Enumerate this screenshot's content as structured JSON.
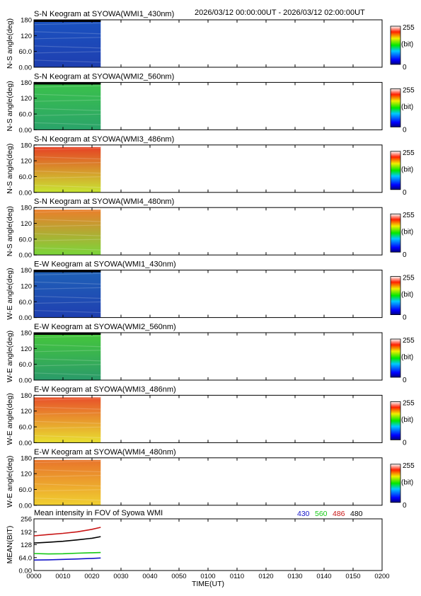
{
  "header": {
    "range": "2026/03/12 00:00:00UT - 2026/03/12 02:00:00UT"
  },
  "chart_data": [
    {
      "type": "heatmap",
      "title": "S-N Keogram at SYOWA(WMI1_430nm)",
      "ylabel": "N-S angle(deg)",
      "yticks": [
        "0.00",
        "60.0",
        "120",
        "180"
      ],
      "ylim": [
        0,
        180
      ],
      "colorbar": {
        "min": "0",
        "max": "255",
        "unit": "(bit)"
      },
      "data_extent_time": "00:00-00:23",
      "palette": "blue",
      "bg": [
        "#1f3fb0",
        "#1a52c0"
      ]
    },
    {
      "type": "heatmap",
      "title": "S-N Keogram at SYOWA(WMI2_560nm)",
      "ylabel": "N-S angle(deg)",
      "yticks": [
        "0.00",
        "60.0",
        "120",
        "180"
      ],
      "ylim": [
        0,
        180
      ],
      "colorbar": {
        "min": "0",
        "max": "255",
        "unit": "(bit)"
      },
      "data_extent_time": "00:00-00:23",
      "palette": "green",
      "bg": [
        "#2aa36a",
        "#3bc24a"
      ]
    },
    {
      "type": "heatmap",
      "title": "S-N Keogram at SYOWA(WMI3_486nm)",
      "ylabel": "N-S angle(deg)",
      "yticks": [
        "0.00",
        "60.0",
        "120",
        "180"
      ],
      "ylim": [
        0,
        180
      ],
      "colorbar": {
        "min": "0",
        "max": "255",
        "unit": "(bit)"
      },
      "data_extent_time": "00:00-00:23",
      "palette": "red",
      "bg": [
        "#c8e632",
        "#e83a24"
      ]
    },
    {
      "type": "heatmap",
      "title": "S-N Keogram at SYOWA(WMI4_480nm)",
      "ylabel": "N-S angle(deg)",
      "yticks": [
        "0.00",
        "60.0",
        "120",
        "180"
      ],
      "ylim": [
        0,
        180
      ],
      "colorbar": {
        "min": "0",
        "max": "255",
        "unit": "(bit)"
      },
      "data_extent_time": "00:00-00:23",
      "palette": "yellow",
      "bg": [
        "#7ad63a",
        "#f07a2a"
      ]
    },
    {
      "type": "heatmap",
      "title": "E-W Keogram at SYOWA(WMI1_430nm)",
      "ylabel": "W-E angle(deg)",
      "yticks": [
        "0.00",
        "60.0",
        "120",
        "180"
      ],
      "ylim": [
        0,
        180
      ],
      "colorbar": {
        "min": "0",
        "max": "255",
        "unit": "(bit)"
      },
      "data_extent_time": "00:00-00:23",
      "palette": "blue",
      "bg": [
        "#1f3fb0",
        "#1f62b8"
      ]
    },
    {
      "type": "heatmap",
      "title": "E-W Keogram at SYOWA(WMI2_560nm)",
      "ylabel": "W-E angle(deg)",
      "yticks": [
        "0.00",
        "60.0",
        "120",
        "180"
      ],
      "ylim": [
        0,
        180
      ],
      "colorbar": {
        "min": "0",
        "max": "255",
        "unit": "(bit)"
      },
      "data_extent_time": "00:00-00:23",
      "palette": "green",
      "bg": [
        "#2a9a6a",
        "#46c83a"
      ]
    },
    {
      "type": "heatmap",
      "title": "E-W Keogram at SYOWA(WMI3_486nm)",
      "ylabel": "W-E angle(deg)",
      "yticks": [
        "0.00",
        "60.0",
        "120",
        "180"
      ],
      "ylim": [
        0,
        180
      ],
      "colorbar": {
        "min": "0",
        "max": "255",
        "unit": "(bit)"
      },
      "data_extent_time": "00:00-00:23",
      "palette": "red",
      "bg": [
        "#e8e030",
        "#e84a2a"
      ]
    },
    {
      "type": "heatmap",
      "title": "E-W Keogram at SYOWA(WMI4_480nm)",
      "ylabel": "W-E angle(deg)",
      "yticks": [
        "0.00",
        "60.0",
        "120",
        "180"
      ],
      "ylim": [
        0,
        180
      ],
      "colorbar": {
        "min": "0",
        "max": "255",
        "unit": "(bit)"
      },
      "data_extent_time": "00:00-00:23",
      "palette": "yellow",
      "bg": [
        "#f0d030",
        "#e8702a"
      ]
    },
    {
      "type": "line",
      "title": "Mean intensity in FOV of Syowa WMI",
      "ylabel": "MEAN(BIT)",
      "xlabel": "TIME(UT)",
      "yticks": [
        "0.00",
        "64.0",
        "128",
        "192",
        "256"
      ],
      "ylim": [
        0,
        256
      ],
      "xticks": [
        "0000",
        "0010",
        "0020",
        "0030",
        "0040",
        "0050",
        "0100",
        "0110",
        "0120",
        "0130",
        "0140",
        "0150",
        "0200"
      ],
      "series": [
        {
          "name": "430",
          "color": "#1414c8",
          "x": [
            0,
            5,
            10,
            15,
            20,
            23
          ],
          "y": [
            52,
            53,
            55,
            57,
            60,
            62
          ]
        },
        {
          "name": "560",
          "color": "#14c814",
          "x": [
            0,
            5,
            10,
            15,
            20,
            23
          ],
          "y": [
            84,
            82,
            83,
            86,
            88,
            89
          ]
        },
        {
          "name": "486",
          "color": "#c81414",
          "x": [
            0,
            5,
            10,
            15,
            20,
            23
          ],
          "y": [
            172,
            178,
            184,
            192,
            204,
            214
          ]
        },
        {
          "name": "480",
          "color": "#000000",
          "x": [
            0,
            5,
            10,
            15,
            20,
            23
          ],
          "y": [
            136,
            140,
            145,
            152,
            160,
            168
          ]
        }
      ]
    }
  ]
}
